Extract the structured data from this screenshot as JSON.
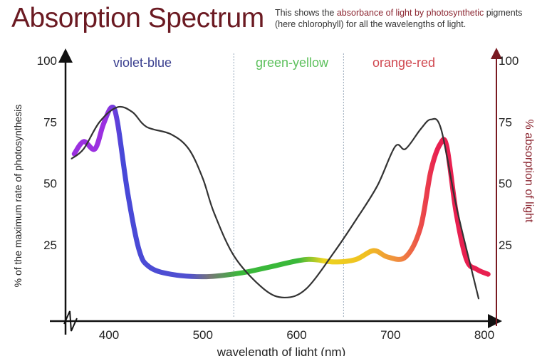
{
  "chart_data": {
    "type": "line",
    "title": "Absorption Spectrum",
    "description": {
      "pre": "This shows the ",
      "highlight": "absorbance of light by photosynthetic",
      "post": " pigments (here chlorophyll) for all the wavelengths of light."
    },
    "xlabel": "wavelength of light (nm)",
    "ylabel_left": "% of the maximum rate of photosynthesis",
    "ylabel_right": "% absorption of light",
    "xlim": [
      355,
      815
    ],
    "ylim": [
      0,
      100
    ],
    "x_ticks": [
      400,
      500,
      600,
      700,
      800
    ],
    "y_ticks": [
      25,
      50,
      75,
      100
    ],
    "regions": [
      {
        "label": "violet-blue",
        "color": "#3a3f8f"
      },
      {
        "label": "green-yellow",
        "color": "#5cc05c"
      },
      {
        "label": "orange-red",
        "color": "#d0474f"
      }
    ],
    "region_boundaries": [
      533,
      650
    ],
    "series": [
      {
        "name": "rate of photosynthesis",
        "color": "#333333",
        "x": [
          360,
          373,
          390,
          409,
          425,
          440,
          466,
          485,
          500,
          512,
          534,
          565,
          587,
          610,
          640,
          663,
          686,
          705,
          716,
          732,
          743,
          754,
          770,
          785,
          794
        ],
        "y": [
          60,
          64,
          75,
          81,
          79,
          73,
          70,
          64,
          52,
          38,
          20,
          7,
          3.5,
          7,
          22,
          35,
          49,
          65,
          64,
          72,
          76,
          72,
          41,
          17,
          3
        ]
      },
      {
        "name": "absorption of light",
        "colors": [
          "#8a2be2",
          "#4848d8",
          "#888888",
          "#3ab83a",
          "#e8d020",
          "#f0a030",
          "#e02050"
        ],
        "x": [
          363,
          373,
          385,
          394,
          403,
          409,
          420,
          432,
          443,
          466,
          504,
          542,
          572,
          610,
          640,
          663,
          682,
          697,
          716,
          732,
          743,
          753,
          760,
          770,
          781,
          792,
          804
        ],
        "y": [
          62,
          67,
          64,
          74,
          81,
          75,
          46,
          23,
          16,
          13,
          12,
          13.6,
          16,
          19,
          18,
          19,
          22.6,
          20,
          20,
          32,
          55,
          66,
          65,
          38,
          19,
          15,
          13
        ]
      }
    ]
  }
}
